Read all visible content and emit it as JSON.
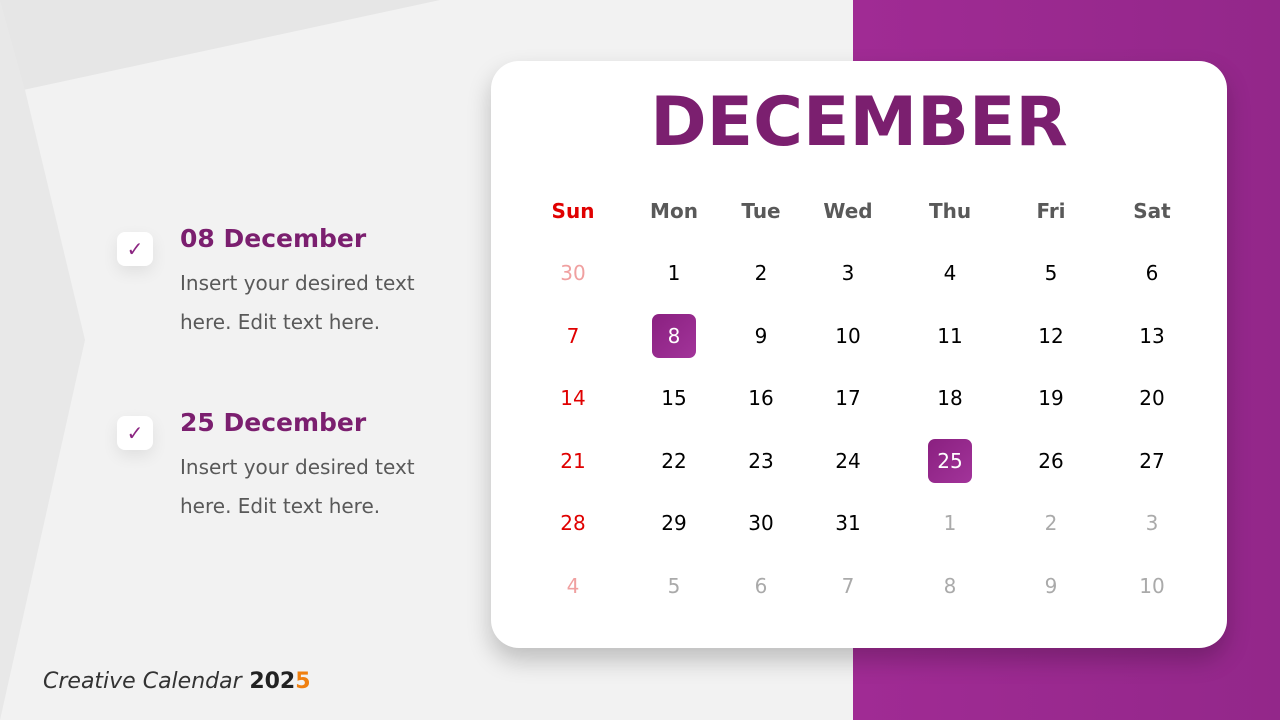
{
  "month": "DECEMBER",
  "weekdays": [
    "Sun",
    "Mon",
    "Tue",
    "Wed",
    "Thu",
    "Fri",
    "Sat"
  ],
  "weeks": [
    [
      {
        "d": "30",
        "out": true
      },
      {
        "d": "1"
      },
      {
        "d": "2"
      },
      {
        "d": "3"
      },
      {
        "d": "4"
      },
      {
        "d": "5"
      },
      {
        "d": "6"
      }
    ],
    [
      {
        "d": "7"
      },
      {
        "d": "8",
        "hl": true
      },
      {
        "d": "9"
      },
      {
        "d": "10"
      },
      {
        "d": "11"
      },
      {
        "d": "12"
      },
      {
        "d": "13"
      }
    ],
    [
      {
        "d": "14"
      },
      {
        "d": "15"
      },
      {
        "d": "16"
      },
      {
        "d": "17"
      },
      {
        "d": "18"
      },
      {
        "d": "19"
      },
      {
        "d": "20"
      }
    ],
    [
      {
        "d": "21"
      },
      {
        "d": "22"
      },
      {
        "d": "23"
      },
      {
        "d": "24"
      },
      {
        "d": "25",
        "hl": true
      },
      {
        "d": "26"
      },
      {
        "d": "27"
      }
    ],
    [
      {
        "d": "28"
      },
      {
        "d": "29"
      },
      {
        "d": "30"
      },
      {
        "d": "31"
      },
      {
        "d": "1",
        "out": true
      },
      {
        "d": "2",
        "out": true
      },
      {
        "d": "3",
        "out": true
      }
    ],
    [
      {
        "d": "4",
        "out": true
      },
      {
        "d": "5",
        "out": true
      },
      {
        "d": "6",
        "out": true
      },
      {
        "d": "7",
        "out": true
      },
      {
        "d": "8",
        "out": true
      },
      {
        "d": "9",
        "out": true
      },
      {
        "d": "10",
        "out": true
      }
    ]
  ],
  "events": [
    {
      "title": "08 December",
      "text": "Insert your desired text here. Edit text here.",
      "icon": "check-icon"
    },
    {
      "title": "25 December",
      "text": "Insert your desired text here. Edit text here.",
      "icon": "check-icon"
    }
  ],
  "footer": {
    "label": "Creative Calendar",
    "year_a": "202",
    "year_b": "5"
  },
  "colors": {
    "accent": "#9e2a93",
    "title": "#7b1f6f",
    "sunday": "#e00000",
    "year_highlight": "#f08010"
  }
}
